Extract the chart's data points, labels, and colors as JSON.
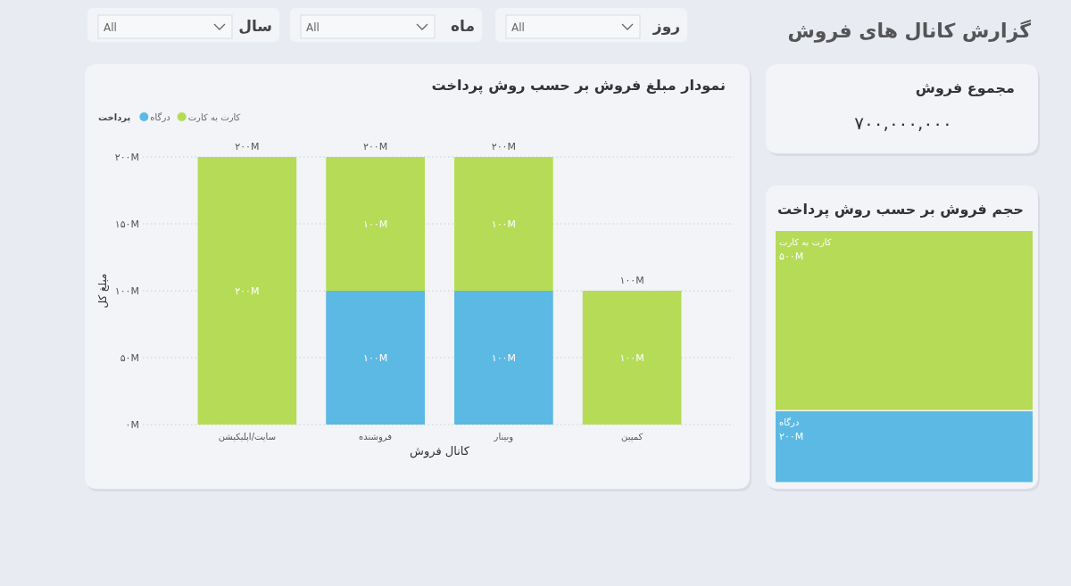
{
  "chart_data": [
    {
      "type": "other",
      "title": "گزارش کانال های فروش",
      "annotations": [
        "روز",
        "All",
        "ماه",
        "All",
        "سال",
        "All"
      ]
    },
    {
      "type": "other",
      "title": "مجموع فروش",
      "annotations": [
        "۷۰۰,۰۰۰,۰۰۰"
      ]
    },
    {
      "type": "bar",
      "title": "نمودار مبلغ فروش بر حسب روش پرداخت",
      "xlabel": "کانال فروش",
      "ylabel": "مبلغ کل",
      "legend_title": "پرداخت",
      "legend": "top left",
      "stacked": true,
      "grid": "y",
      "categories": [
        "سایت/اپلیکیشن",
        "فروشنده",
        "وبینار",
        "کمپین"
      ],
      "series": [
        {
          "name": "درگاه",
          "color": "#5bb9e3",
          "values": [
            null,
            100,
            100,
            null
          ],
          "value_labels": [
            null,
            "۱۰۰M",
            "۱۰۰M",
            null
          ]
        },
        {
          "name": "کارت به کارت",
          "color": "#b6db56",
          "values": [
            200,
            100,
            100,
            100
          ],
          "value_labels": [
            "۲۰۰M",
            "۱۰۰M",
            "۱۰۰M",
            "۱۰۰M"
          ]
        }
      ],
      "totals": [
        "۲۰۰M",
        "۲۰۰M",
        "۲۰۰M",
        "۱۰۰M"
      ],
      "ylim": [
        0,
        200
      ],
      "yticks": [
        {
          "value": 0,
          "label": "۰M"
        },
        {
          "value": 50,
          "label": "۵۰M"
        },
        {
          "value": 100,
          "label": "۱۰۰M"
        },
        {
          "value": 150,
          "label": "۱۵۰M"
        },
        {
          "value": 200,
          "label": "۲۰۰M"
        }
      ]
    },
    {
      "type": "other",
      "title": "حجم فروش بر حسب روش پرداخت",
      "categories": [
        "کارت به کارت",
        "درگاه"
      ],
      "values": [
        500,
        200
      ],
      "value_labels": [
        "۵۰۰M",
        "۲۰۰M"
      ],
      "colors": [
        "#b6db56",
        "#5bb9e3"
      ]
    }
  ]
}
